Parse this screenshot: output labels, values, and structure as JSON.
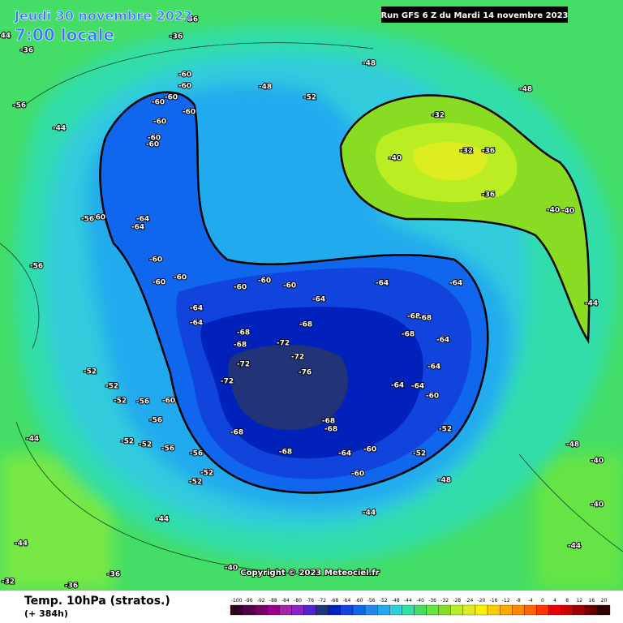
{
  "header": {
    "date": "Jeudi 30 novembre 2023",
    "time": "7:00 locale",
    "run": "Run GFS 6 Z du Mardi 14 novembre 2023"
  },
  "footer": {
    "title": "Temp. 10hPa (stratos.)",
    "lead": "(+ 384h)",
    "copyright": "Copyright © 2023 Meteociel.fr"
  },
  "legend": {
    "ticks": [
      -100,
      -96,
      -92,
      -88,
      -84,
      -80,
      -76,
      -72,
      -68,
      -64,
      -60,
      -56,
      -52,
      -48,
      -44,
      -40,
      -36,
      -32,
      -28,
      -24,
      -20,
      -16,
      -12,
      -8,
      -4,
      0,
      4,
      8,
      12,
      16,
      20
    ],
    "colors": [
      "#330022",
      "#550044",
      "#770066",
      "#990088",
      "#aa22aa",
      "#8822cc",
      "#5522cc",
      "#223377",
      "#0022bb",
      "#1144dd",
      "#1166ee",
      "#2288ee",
      "#22aaee",
      "#33ccdd",
      "#33ddaa",
      "#44dd66",
      "#66e444",
      "#88dd22",
      "#bbee22",
      "#dded22",
      "#ffee00",
      "#ffcc00",
      "#ffaa00",
      "#ff8800",
      "#ff6600",
      "#ff3300",
      "#ee0000",
      "#cc0000",
      "#990000",
      "#660000",
      "#330000"
    ]
  },
  "contour_labels": [
    -60,
    -60,
    -60,
    -60,
    -60,
    -60,
    -60,
    -60,
    -64,
    -64,
    -60,
    -56,
    -60,
    -60,
    -60,
    -60,
    -60,
    -60,
    -64,
    -64,
    -64,
    -64,
    -64,
    -68,
    -68,
    -72,
    -72,
    -76,
    -72,
    -72,
    -68,
    -68,
    -68,
    -68,
    -64,
    -64,
    -64,
    -64,
    -60,
    -68,
    -68,
    -68,
    -68,
    -64,
    -60,
    -60,
    -56,
    -52,
    -52,
    -56,
    -56,
    -56,
    -60,
    -52,
    -52,
    -52,
    -52,
    -52,
    -52,
    -52,
    -56,
    -56,
    -36,
    -32,
    -32,
    -36,
    -40,
    -36,
    -40,
    -40,
    -44,
    -48,
    -52,
    -48,
    -48,
    -56,
    -44,
    -36,
    -44,
    -44,
    -44,
    -40,
    -36,
    -36,
    -32,
    -44,
    -40,
    -40,
    -44,
    -48,
    -48,
    -44
  ]
}
